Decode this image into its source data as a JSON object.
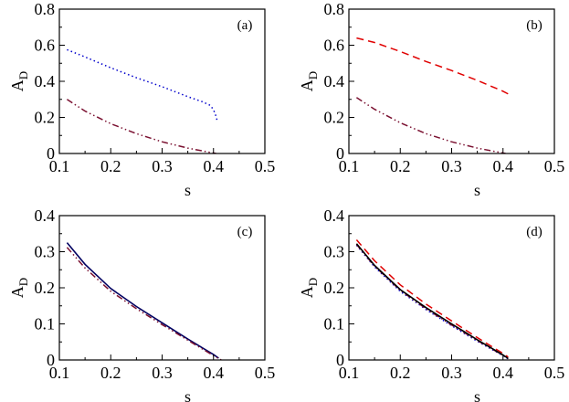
{
  "figure": {
    "description_free": true
  },
  "chart_data": [
    {
      "type": "line",
      "panel_label": "(a)",
      "xlabel": "s",
      "ylabel": "A",
      "ylabel_sub": "D",
      "xlim": [
        0.1,
        0.5
      ],
      "ylim": [
        0,
        0.8
      ],
      "xticks": [
        "0.1",
        "0.2",
        "0.3",
        "0.4",
        "0.5"
      ],
      "yticks": [
        "0",
        "0.2",
        "0.4",
        "0.6",
        "0.8"
      ],
      "series": [
        {
          "name": "dotted blue",
          "color": "#0000cc",
          "dash": "dotted",
          "x": [
            0.115,
            0.15,
            0.2,
            0.25,
            0.3,
            0.35,
            0.38,
            0.395,
            0.403,
            0.408
          ],
          "y": [
            0.575,
            0.535,
            0.475,
            0.42,
            0.37,
            0.315,
            0.285,
            0.265,
            0.225,
            0.175
          ]
        },
        {
          "name": "dash-dot maroon",
          "color": "#7a1030",
          "dash": "dashdotdot",
          "x": [
            0.115,
            0.15,
            0.2,
            0.25,
            0.3,
            0.35,
            0.39,
            0.405
          ],
          "y": [
            0.3,
            0.235,
            0.165,
            0.11,
            0.065,
            0.03,
            0.008,
            0.0
          ]
        }
      ]
    },
    {
      "type": "line",
      "panel_label": "(b)",
      "xlabel": "s",
      "ylabel": "A",
      "ylabel_sub": "D",
      "xlim": [
        0.1,
        0.5
      ],
      "ylim": [
        0,
        0.8
      ],
      "xticks": [
        "0.1",
        "0.2",
        "0.3",
        "0.4",
        "0.5"
      ],
      "yticks": [
        "0",
        "0.2",
        "0.4",
        "0.6",
        "0.8"
      ],
      "series": [
        {
          "name": "dashed red",
          "color": "#e00000",
          "dash": "dashed",
          "x": [
            0.115,
            0.15,
            0.2,
            0.25,
            0.3,
            0.35,
            0.4,
            0.41
          ],
          "y": [
            0.64,
            0.615,
            0.565,
            0.51,
            0.46,
            0.405,
            0.345,
            0.33
          ]
        },
        {
          "name": "dash-dot maroon",
          "color": "#7a1030",
          "dash": "dashdotdot",
          "x": [
            0.115,
            0.15,
            0.2,
            0.25,
            0.3,
            0.35,
            0.39,
            0.405
          ],
          "y": [
            0.31,
            0.245,
            0.17,
            0.11,
            0.065,
            0.03,
            0.008,
            0.0
          ]
        }
      ]
    },
    {
      "type": "line",
      "panel_label": "(c)",
      "xlabel": "s",
      "ylabel": "A",
      "ylabel_sub": "D",
      "xlim": [
        0.1,
        0.5
      ],
      "ylim": [
        0,
        0.4
      ],
      "xticks": [
        "0.1",
        "0.2",
        "0.3",
        "0.4",
        "0.5"
      ],
      "yticks": [
        "0",
        "0.1",
        "0.2",
        "0.3",
        "0.4"
      ],
      "series": [
        {
          "name": "solid navy",
          "color": "#000060",
          "dash": "solid",
          "x": [
            0.115,
            0.15,
            0.2,
            0.25,
            0.3,
            0.35,
            0.4,
            0.41
          ],
          "y": [
            0.325,
            0.265,
            0.198,
            0.148,
            0.103,
            0.058,
            0.015,
            0.005
          ]
        },
        {
          "name": "dash-dot maroon",
          "color": "#7a1030",
          "dash": "dashdotdot",
          "x": [
            0.115,
            0.15,
            0.2,
            0.25,
            0.3,
            0.35,
            0.4,
            0.415
          ],
          "y": [
            0.312,
            0.255,
            0.19,
            0.142,
            0.098,
            0.055,
            0.012,
            0.0
          ]
        }
      ]
    },
    {
      "type": "line",
      "panel_label": "(d)",
      "xlabel": "s",
      "ylabel": "A",
      "ylabel_sub": "D",
      "xlim": [
        0.1,
        0.5
      ],
      "ylim": [
        0,
        0.4
      ],
      "xticks": [
        "0.1",
        "0.2",
        "0.3",
        "0.4",
        "0.5"
      ],
      "yticks": [
        "0",
        "0.1",
        "0.2",
        "0.3",
        "0.4"
      ],
      "series": [
        {
          "name": "dashed red",
          "color": "#e00000",
          "dash": "dashed",
          "x": [
            0.115,
            0.15,
            0.2,
            0.25,
            0.3,
            0.35,
            0.4,
            0.41
          ],
          "y": [
            0.333,
            0.275,
            0.208,
            0.155,
            0.108,
            0.062,
            0.018,
            0.008
          ]
        },
        {
          "name": "dotted blue",
          "color": "#0000cc",
          "dash": "dotted",
          "x": [
            0.115,
            0.15,
            0.2,
            0.25,
            0.3,
            0.35,
            0.4,
            0.41
          ],
          "y": [
            0.318,
            0.258,
            0.19,
            0.14,
            0.095,
            0.052,
            0.012,
            0.003
          ]
        },
        {
          "name": "dash-dot maroon",
          "color": "#7a1030",
          "dash": "dashdotdot",
          "x": [
            0.115,
            0.15,
            0.2,
            0.25,
            0.3,
            0.35,
            0.4,
            0.41
          ],
          "y": [
            0.32,
            0.26,
            0.193,
            0.142,
            0.097,
            0.054,
            0.013,
            0.003
          ]
        },
        {
          "name": "solid black",
          "color": "#000000",
          "dash": "solid",
          "x": [
            0.115,
            0.15,
            0.2,
            0.25,
            0.3,
            0.35,
            0.4,
            0.41
          ],
          "y": [
            0.322,
            0.262,
            0.195,
            0.145,
            0.1,
            0.056,
            0.014,
            0.004
          ]
        }
      ]
    }
  ]
}
